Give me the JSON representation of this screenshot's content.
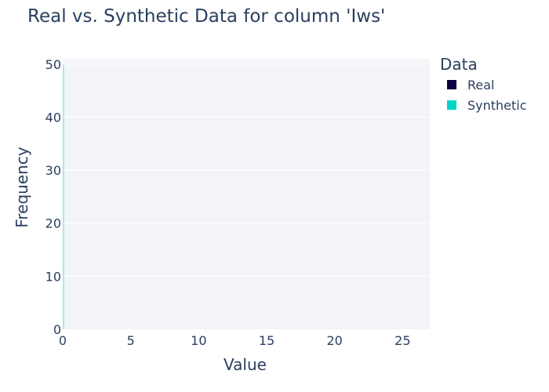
{
  "chart_data": {
    "type": "bar",
    "title": "Real vs. Synthetic Data for column 'Iws'",
    "xlabel": "Value",
    "ylabel": "Frequency",
    "xlim": [
      0,
      27
    ],
    "ylim": [
      0,
      51
    ],
    "xticks": [
      0,
      5,
      10,
      15,
      20,
      25
    ],
    "yticks": [
      0,
      10,
      20,
      30,
      40,
      50
    ],
    "grid": true,
    "legend": {
      "title": "Data",
      "placement": "right"
    },
    "series": [
      {
        "name": "Real",
        "color": "#0d0040",
        "x": [],
        "values": []
      },
      {
        "name": "Synthetic",
        "color": "#00d4c8",
        "x": [
          0.1
        ],
        "values": [
          50
        ]
      }
    ]
  }
}
